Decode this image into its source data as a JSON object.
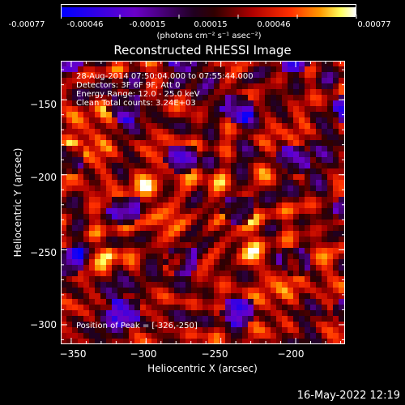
{
  "colorbar": {
    "tick_labels": [
      "-0.00077",
      "-0.00046",
      "-0.00015",
      "0.00015",
      "0.00046",
      "0.00077"
    ],
    "unit_label": "(photons cm⁻² s⁻¹ asec⁻²)",
    "range": [
      -0.00077,
      0.00077
    ]
  },
  "annotations": {
    "time": "28-Aug-2014 07:50:04.000 to 07:55:44.000",
    "detectors": "Detectors: 3F 6F 9F, Att 0",
    "energy": "Energy Range: 12.0 - 25.0 keV",
    "clean": "Clean     Total counts: 3.24E+03",
    "peak": "Position of Peak = [-326,-250]"
  },
  "footer_date": "16-May-2022 12:19",
  "chart_data": {
    "type": "heatmap",
    "title": "Reconstructed RHESSI Image",
    "xlabel": "Heliocentric X (arcsec)",
    "ylabel": "Heliocentric Y (arcsec)",
    "xlim": [
      -357,
      -167
    ],
    "ylim": [
      -313,
      -124
    ],
    "x_ticks": [
      -350,
      -300,
      -250,
      -200
    ],
    "x_tick_labels": [
      "−350",
      "−300",
      "−250",
      "−200"
    ],
    "y_ticks": [
      -300,
      -250,
      -200,
      -150
    ],
    "y_tick_labels": [
      "−300",
      "−250",
      "−200",
      "−150"
    ],
    "peak_position": [
      -326,
      -250
    ],
    "value_range": [
      -0.00077,
      0.00077
    ]
  }
}
